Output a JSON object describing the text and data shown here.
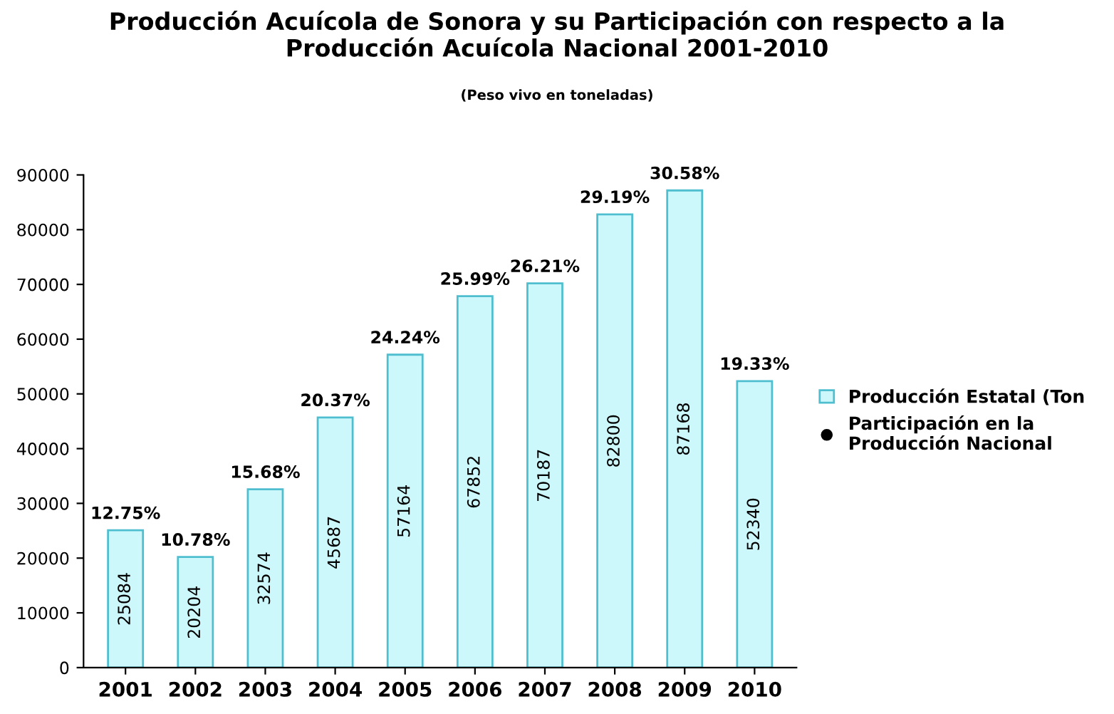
{
  "chart_data": {
    "type": "bar",
    "title": "Producción Acuícola de Sonora y su Participación con respecto a la\nProducción Acuícola Nacional 2001-2010",
    "subtitle": "(Peso vivo en toneladas)",
    "categories": [
      "2001",
      "2002",
      "2003",
      "2004",
      "2005",
      "2006",
      "2007",
      "2008",
      "2009",
      "2010"
    ],
    "series": [
      {
        "name": "Producción Estatal (Ton",
        "color": "#ccf8fc",
        "values": [
          25084,
          20204,
          32574,
          45687,
          57164,
          67852,
          70187,
          82800,
          87168,
          52340
        ]
      },
      {
        "name": "Participación en la\nProducción Nacional",
        "type": "scatter",
        "color": "#000000",
        "values": [
          null,
          null,
          null,
          null,
          null,
          null,
          null,
          null,
          null,
          null
        ]
      }
    ],
    "data_labels": true,
    "annotations": [
      {
        "text": "12.75%",
        "x": "2001",
        "y": 25084
      },
      {
        "text": "10.78%",
        "x": "2002",
        "y": 20204
      },
      {
        "text": "15.68%",
        "x": "2003",
        "y": 32574
      },
      {
        "text": "20.37%",
        "x": "2004",
        "y": 45687
      },
      {
        "text": "24.24%",
        "x": "2005",
        "y": 57164
      },
      {
        "text": "25.99%",
        "x": "2006",
        "y": 67852
      },
      {
        "text": "26.21%",
        "x": "2007",
        "y": 70187
      },
      {
        "text": "29.19%",
        "x": "2008",
        "y": 82800
      },
      {
        "text": "30.58%",
        "x": "2009",
        "y": 87168
      },
      {
        "text": "19.33%",
        "x": "2010",
        "y": 52340
      }
    ],
    "ylim": [
      0,
      90000
    ],
    "yticks": [
      0,
      10000,
      20000,
      30000,
      40000,
      50000,
      60000,
      70000,
      80000,
      90000
    ],
    "grid": false,
    "legend": "right",
    "marker": "circle"
  }
}
